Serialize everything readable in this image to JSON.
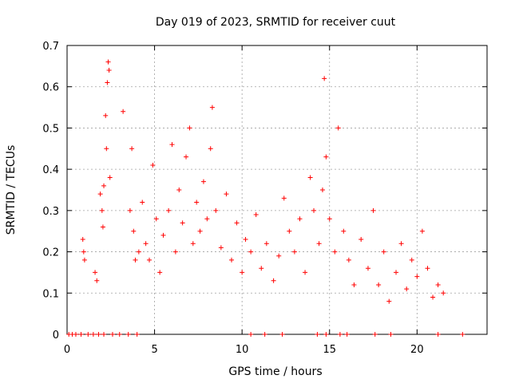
{
  "chart_data": {
    "type": "scatter",
    "title": "Day 019 of 2023, SRMTID for receiver cuut",
    "xlabel": "GPS time / hours",
    "ylabel": "SRMTID / TECUs",
    "xlim": [
      0,
      24
    ],
    "ylim": [
      0,
      0.7
    ],
    "xticks": [
      0,
      5,
      10,
      15,
      20
    ],
    "yticks": [
      0,
      0.1,
      0.2,
      0.3,
      0.4,
      0.5,
      0.6,
      0.7
    ],
    "xtick_labels": [
      "0",
      "5",
      "10",
      "15",
      "20"
    ],
    "ytick_labels": [
      "0",
      "0.1",
      "0.2",
      "0.3",
      "0.4",
      "0.5",
      "0.6",
      "0.7"
    ],
    "grid": true,
    "marker": "+",
    "color": "#ff0000",
    "series": [
      {
        "name": "SRMTID",
        "x": [
          0.9,
          0.95,
          1.0,
          1.6,
          1.7,
          1.9,
          2.0,
          2.05,
          2.1,
          2.2,
          2.25,
          2.3,
          2.35,
          2.4,
          2.45,
          3.2,
          3.6,
          3.7,
          3.8,
          3.9,
          4.1,
          4.3,
          4.5,
          4.7,
          4.9,
          5.1,
          5.3,
          5.5,
          5.8,
          6.0,
          6.2,
          6.4,
          6.6,
          6.8,
          7.0,
          7.2,
          7.4,
          7.6,
          7.8,
          8.0,
          8.2,
          8.3,
          8.5,
          8.8,
          9.1,
          9.4,
          9.7,
          10.0,
          10.2,
          10.5,
          10.8,
          11.1,
          11.4,
          11.8,
          12.1,
          12.4,
          12.7,
          13.0,
          13.3,
          13.6,
          13.9,
          14.1,
          14.4,
          14.6,
          14.7,
          14.8,
          15.0,
          15.3,
          15.5,
          15.8,
          16.1,
          16.4,
          16.8,
          17.2,
          17.5,
          17.8,
          18.1,
          18.4,
          18.8,
          19.1,
          19.4,
          19.7,
          20.0,
          20.3,
          20.6,
          20.9,
          21.2,
          21.5
        ],
        "y": [
          0.23,
          0.2,
          0.18,
          0.15,
          0.13,
          0.34,
          0.3,
          0.26,
          0.36,
          0.53,
          0.45,
          0.61,
          0.66,
          0.64,
          0.38,
          0.54,
          0.3,
          0.45,
          0.25,
          0.18,
          0.2,
          0.32,
          0.22,
          0.18,
          0.41,
          0.28,
          0.15,
          0.24,
          0.3,
          0.46,
          0.2,
          0.35,
          0.27,
          0.43,
          0.5,
          0.22,
          0.32,
          0.25,
          0.37,
          0.28,
          0.45,
          0.55,
          0.3,
          0.21,
          0.34,
          0.18,
          0.27,
          0.15,
          0.23,
          0.2,
          0.29,
          0.16,
          0.22,
          0.13,
          0.19,
          0.33,
          0.25,
          0.2,
          0.28,
          0.15,
          0.38,
          0.3,
          0.22,
          0.35,
          0.62,
          0.43,
          0.28,
          0.2,
          0.5,
          0.25,
          0.18,
          0.12,
          0.23,
          0.16,
          0.3,
          0.12,
          0.2,
          0.08,
          0.15,
          0.22,
          0.11,
          0.18,
          0.14,
          0.25,
          0.16,
          0.09,
          0.12,
          0.1
        ]
      },
      {
        "name": "zero-level",
        "x": [
          0.1,
          0.3,
          0.5,
          0.8,
          1.2,
          1.5,
          1.8,
          2.1,
          2.6,
          3.0,
          3.5,
          4.0,
          10.5,
          11.3,
          12.3,
          14.3,
          14.8,
          15.6,
          16.0,
          17.6,
          18.5,
          21.2,
          22.6
        ],
        "y": [
          0,
          0,
          0,
          0,
          0,
          0,
          0,
          0,
          0,
          0,
          0,
          0,
          0,
          0,
          0,
          0,
          0,
          0,
          0,
          0,
          0,
          0,
          0
        ]
      }
    ]
  }
}
